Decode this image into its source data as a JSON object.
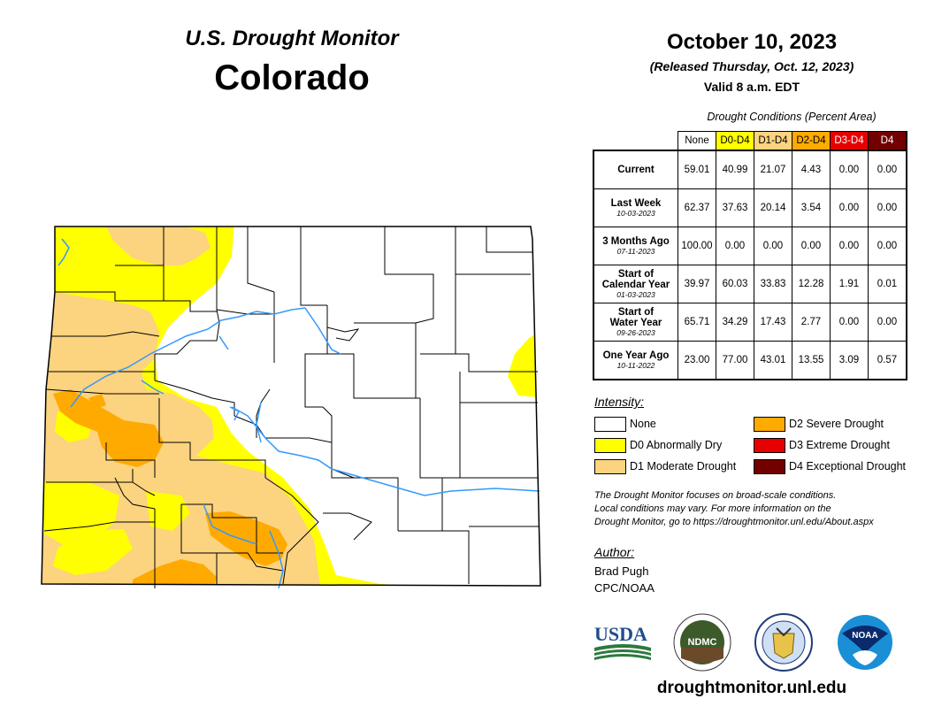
{
  "header": {
    "title": "U.S. Drought Monitor",
    "state": "Colorado",
    "date": "October 10, 2023",
    "released": "(Released Thursday, Oct. 12, 2023)",
    "valid": "Valid 8 a.m. EDT"
  },
  "table": {
    "caption": "Drought Conditions (Percent Area)",
    "columns": [
      "None",
      "D0-D4",
      "D1-D4",
      "D2-D4",
      "D3-D4",
      "D4"
    ],
    "rows": [
      {
        "label": "Current",
        "sub": "",
        "values": [
          "59.01",
          "40.99",
          "21.07",
          "4.43",
          "0.00",
          "0.00"
        ]
      },
      {
        "label": "Last Week",
        "sub": "10-03-2023",
        "values": [
          "62.37",
          "37.63",
          "20.14",
          "3.54",
          "0.00",
          "0.00"
        ]
      },
      {
        "label": "3 Months Ago",
        "sub": "07-11-2023",
        "values": [
          "100.00",
          "0.00",
          "0.00",
          "0.00",
          "0.00",
          "0.00"
        ]
      },
      {
        "label": "Start of Calendar Year",
        "sub": "01-03-2023",
        "values": [
          "39.97",
          "60.03",
          "33.83",
          "12.28",
          "1.91",
          "0.01"
        ]
      },
      {
        "label": "Start of Water Year",
        "sub": "09-26-2023",
        "values": [
          "65.71",
          "34.29",
          "17.43",
          "2.77",
          "0.00",
          "0.00"
        ]
      },
      {
        "label": "One Year Ago",
        "sub": "10-11-2022",
        "values": [
          "23.00",
          "77.00",
          "43.01",
          "13.55",
          "3.09",
          "0.57"
        ]
      }
    ]
  },
  "legend": {
    "title": "Intensity:",
    "items": [
      {
        "label": "None",
        "color": "#ffffff"
      },
      {
        "label": "D0 Abnormally Dry",
        "color": "#ffff00"
      },
      {
        "label": "D1 Moderate Drought",
        "color": "#fcd37f"
      },
      {
        "label": "D2 Severe Drought",
        "color": "#ffaa00"
      },
      {
        "label": "D3 Extreme Drought",
        "color": "#e60000"
      },
      {
        "label": "D4 Exceptional Drought",
        "color": "#730000"
      }
    ]
  },
  "note": {
    "line1": "The Drought Monitor focuses on broad-scale conditions.",
    "line2": "Local conditions may vary. For more information on the",
    "line3": "Drought Monitor, go to https://droughtmonitor.unl.edu/About.aspx"
  },
  "author": {
    "heading": "Author:",
    "name": "Brad Pugh",
    "org": "CPC/NOAA"
  },
  "logos": {
    "usda": "USDA",
    "ndmc": "NDMC",
    "noaa": "NOAA"
  },
  "website": "droughtmonitor.unl.edu",
  "colors": {
    "river": "#3399ff",
    "d0": "#ffff00",
    "d1": "#fcd37f",
    "d2": "#ffaa00",
    "d3": "#e60000",
    "d4": "#730000"
  }
}
